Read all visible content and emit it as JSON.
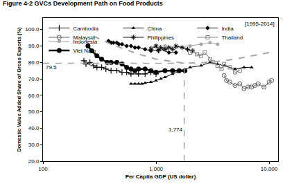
{
  "chart_data": {
    "type": "line",
    "title": "Figure 4-2 GVCs Development Path on Food Products",
    "x_label": "Per Capita GDP (US dollar)",
    "y_label": "Domestic Value Added Share of Gross Exports (%)",
    "log": "x",
    "grid": false,
    "legend": "top",
    "xlim": [
      100,
      12000
    ],
    "xticks": [
      100,
      {
        "value": 1000,
        "label": "1,000"
      },
      {
        "value": 10000,
        "label": "10,000"
      }
    ],
    "ylim": [
      20,
      107
    ],
    "yticks": [
      {
        "value": 20,
        "label": "20.0"
      },
      {
        "value": 30,
        "label": "30.0"
      },
      {
        "value": 40,
        "label": "40.0"
      },
      {
        "value": 50,
        "label": "50.0"
      },
      {
        "value": 60,
        "label": "60.0"
      },
      {
        "value": 70,
        "label": "70.0"
      },
      {
        "value": 80,
        "label": "80.0"
      },
      {
        "value": 90,
        "label": "90.0"
      },
      {
        "value": 100,
        "label": "100.0"
      }
    ],
    "annotations": [
      {
        "text": "[1995-2014]"
      }
    ],
    "reference_lines": [
      {
        "x": 1774,
        "label": "1,774"
      },
      {
        "y": 79.5,
        "label": "79.5"
      }
    ],
    "series": [
      {
        "name": "Cambodia",
        "color": "#000000",
        "marker": "plus",
        "line_style": "solid",
        "x": [
          230,
          240,
          260,
          280,
          300,
          330,
          360,
          400,
          450,
          500,
          550,
          600,
          700,
          800,
          900,
          1000
        ],
        "values": [
          81,
          79,
          80,
          78,
          77,
          77,
          76,
          75,
          75,
          74,
          74,
          73,
          73,
          73,
          74,
          73
        ]
      },
      {
        "name": "China",
        "color": "#000000",
        "marker": "triangle",
        "line_style": "solid",
        "x": [
          600,
          650,
          700,
          750,
          800,
          900,
          1000,
          1100,
          1200,
          1400,
          1700,
          2000,
          2500,
          3000,
          3500,
          4000,
          5000,
          6000,
          7000
        ],
        "values": [
          67,
          67,
          67,
          67,
          67.5,
          68,
          69,
          70,
          71,
          73,
          75,
          77,
          78,
          80,
          79,
          78,
          76,
          77,
          77
        ]
      },
      {
        "name": "India",
        "color": "#000000",
        "marker": "diamond",
        "line_style": "solid",
        "x": [
          380,
          400,
          420,
          450,
          470,
          500,
          550,
          600,
          650,
          700,
          800,
          900,
          1100,
          1300,
          1500
        ],
        "values": [
          93,
          92,
          92,
          92,
          91,
          91,
          90,
          90,
          89,
          89,
          88,
          87,
          88,
          86,
          86
        ]
      },
      {
        "name": "Indonesia",
        "color": "#a6a6a6",
        "marker": "circle",
        "line_style": "solid",
        "x": [
          900,
          1000,
          1100,
          1200,
          1500,
          2000,
          2500,
          3000,
          3500
        ],
        "values": [
          89,
          90,
          88,
          90,
          89,
          90,
          91,
          92,
          91
        ]
      },
      {
        "name": "Malaysia",
        "color": "#595959",
        "marker": "open_circle",
        "line_style": "solid",
        "x": [
          4000,
          4200,
          4500,
          5000,
          5500,
          6000,
          6500,
          7000,
          7500,
          8000,
          9000,
          10000,
          10500
        ],
        "values": [
          72,
          69,
          68,
          66,
          67,
          64,
          65,
          65,
          66,
          67,
          65,
          68,
          69
        ]
      },
      {
        "name": "Philippines",
        "color": "#000000",
        "marker": "asterisk",
        "line_style": "solid",
        "x": [
          900,
          1000,
          1050,
          1100,
          1200,
          1300,
          1400,
          1500,
          1700,
          1900,
          2100
        ],
        "values": [
          88,
          90,
          87,
          89,
          88,
          89,
          88,
          90,
          89,
          88,
          87
        ]
      },
      {
        "name": "Thailand",
        "color": "#808080",
        "marker": "open_square",
        "line_style": "solid",
        "x": [
          2000,
          2100,
          2300,
          2500,
          2700,
          3000,
          3200,
          3500,
          3800,
          4000,
          4500,
          5000,
          5500
        ],
        "values": [
          86,
          87,
          85,
          84,
          86,
          82,
          80,
          78,
          76,
          79,
          77,
          74,
          75
        ]
      },
      {
        "name": "Viet Nam",
        "color": "#000000",
        "marker": "big_circle",
        "line_style": "thick",
        "x": [
          250,
          270,
          300,
          330,
          370,
          400,
          450,
          500,
          550,
          600,
          650,
          700,
          800,
          900,
          1000,
          1200,
          1400,
          1600,
          1800
        ],
        "values": [
          90,
          87,
          84,
          82,
          80,
          80,
          80,
          79,
          77,
          76,
          75,
          76,
          76,
          75,
          74,
          75,
          75,
          75,
          75
        ]
      },
      {
        "color": "#a6a6a6",
        "marker": "none",
        "line_style": "dashed",
        "x": [
          280,
          400,
          700,
          1000,
          1774,
          3000,
          5000,
          10000
        ],
        "values": [
          96,
          91,
          85,
          82,
          79.5,
          80,
          82,
          86
        ]
      }
    ]
  }
}
